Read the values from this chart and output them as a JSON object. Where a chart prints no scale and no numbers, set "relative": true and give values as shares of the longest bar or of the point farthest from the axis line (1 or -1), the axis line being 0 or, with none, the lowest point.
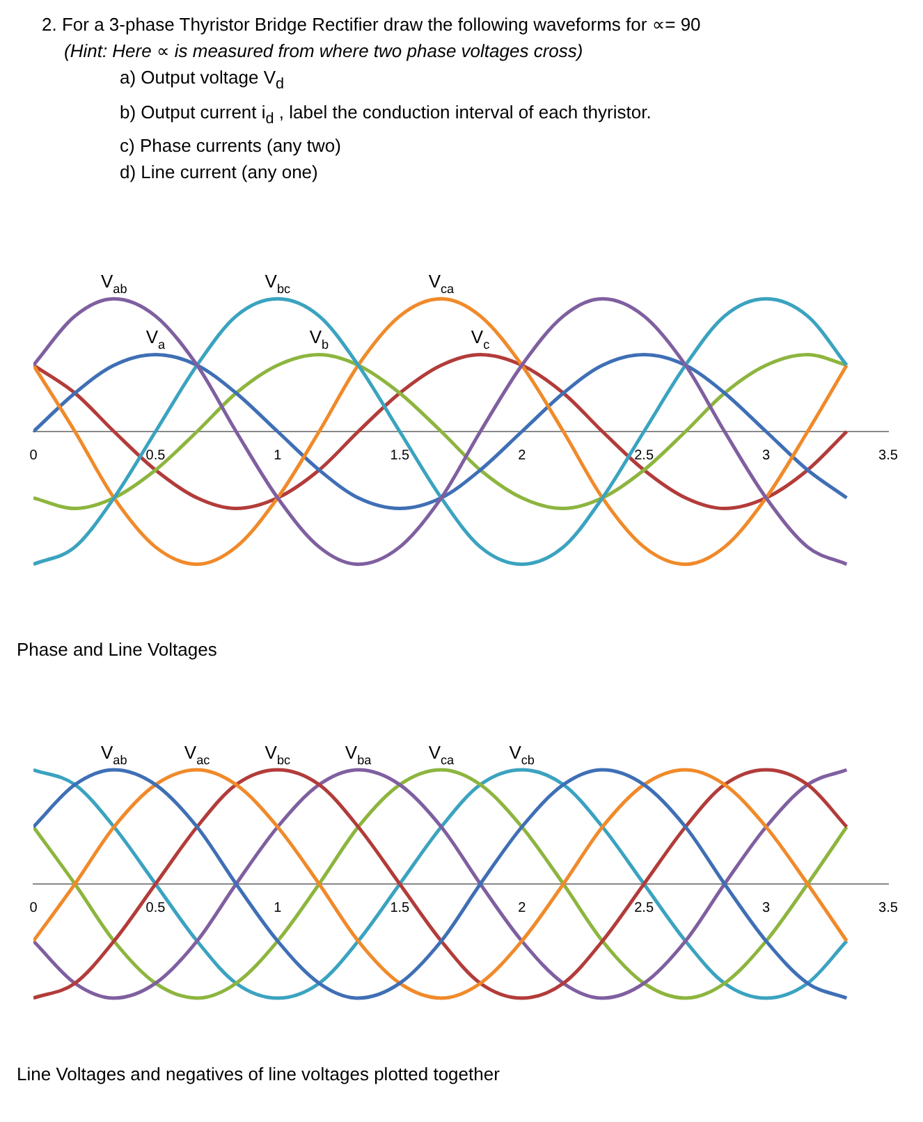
{
  "chart_data": [
    {
      "type": "line",
      "title": "Phase and Line Voltages",
      "annotations": [
        "2. For a 3-phase Thyristor Bridge Rectifier draw the following waveforms for ∝= 90",
        "(Hint: Here ∝ is measured from where two phase voltages cross)",
        "a) Output voltage V$_{d}$",
        "b) Output current i$_{d}$ , label the conduction interval of each thyristor.",
        "c) Phase currents (any two)",
        "d) Line current (any one)"
      ],
      "relative": true,
      "tick_labels": "x",
      "legend": false,
      "grid": false,
      "marker": "none",
      "line_style": "solid",
      "xlim": [
        0,
        3.5
      ],
      "xticks": [
        0,
        0.5,
        1,
        1.5,
        2,
        2.5,
        3,
        3.5
      ],
      "x": [
        0,
        0.17,
        0.33,
        0.5,
        0.67,
        0.83,
        1,
        1.17,
        1.33,
        1.5,
        1.67,
        1.83,
        2,
        2.17,
        2.33,
        2.5,
        2.67,
        2.83,
        3,
        3.17,
        3.33
      ],
      "series": [
        {
          "name": "V$_{ab}$",
          "color": "#7f5fa0",
          "values": [
            0.5,
            0.87,
            1,
            0.87,
            0.5,
            0,
            -0.5,
            -0.87,
            -1,
            -0.87,
            -0.5,
            0,
            0.5,
            0.87,
            1,
            0.87,
            0.5,
            0,
            -0.5,
            -0.87,
            -1
          ]
        },
        {
          "name": "V$_{bc}$",
          "color": "#3ba3c0",
          "values": [
            -1,
            -0.87,
            -0.5,
            0,
            0.5,
            0.87,
            1,
            0.87,
            0.5,
            0,
            -0.5,
            -0.87,
            -1,
            -0.87,
            -0.5,
            0,
            0.5,
            0.87,
            1,
            0.87,
            0.5
          ]
        },
        {
          "name": "V$_{ca}$",
          "color": "#f08a2a",
          "values": [
            0.5,
            0,
            -0.5,
            -0.87,
            -1,
            -0.87,
            -0.5,
            0,
            0.5,
            0.87,
            1,
            0.87,
            0.5,
            0,
            -0.5,
            -0.87,
            -1,
            -0.87,
            -0.5,
            0,
            0.5
          ]
        },
        {
          "name": "V$_{a}$",
          "color": "#3f6fb5",
          "values": [
            0,
            0.29,
            0.5,
            0.58,
            0.5,
            0.29,
            0,
            -0.29,
            -0.5,
            -0.58,
            -0.5,
            -0.29,
            0,
            0.29,
            0.5,
            0.58,
            0.5,
            0.29,
            0,
            -0.29,
            -0.5
          ]
        },
        {
          "name": "V$_{b}$",
          "color": "#8db53f",
          "values": [
            -0.5,
            -0.58,
            -0.5,
            -0.29,
            0,
            0.29,
            0.5,
            0.58,
            0.5,
            0.29,
            0,
            -0.29,
            -0.5,
            -0.58,
            -0.5,
            -0.29,
            0,
            0.29,
            0.5,
            0.58,
            0.5
          ]
        },
        {
          "name": "V$_{c}$",
          "color": "#b23c3a",
          "values": [
            0.5,
            0.29,
            0,
            -0.29,
            -0.5,
            -0.58,
            -0.5,
            -0.29,
            0,
            0.29,
            0.5,
            0.58,
            0.5,
            0.29,
            0,
            -0.29,
            -0.5,
            -0.58,
            -0.5,
            -0.29,
            0
          ]
        }
      ]
    },
    {
      "type": "line",
      "title": "Line Voltages and negatives of line voltages plotted together",
      "relative": true,
      "tick_labels": "x",
      "legend": false,
      "grid": false,
      "marker": "none",
      "line_style": "solid",
      "xlim": [
        0,
        3.5
      ],
      "xticks": [
        0,
        0.5,
        1,
        1.5,
        2,
        2.5,
        3,
        3.5
      ],
      "x": [
        0,
        0.17,
        0.33,
        0.5,
        0.67,
        0.83,
        1,
        1.17,
        1.33,
        1.5,
        1.67,
        1.83,
        2,
        2.17,
        2.33,
        2.5,
        2.67,
        2.83,
        3,
        3.17,
        3.33
      ],
      "series": [
        {
          "name": "V$_{ab}$",
          "color": "#3f6fb5",
          "values": [
            0.5,
            0.87,
            1,
            0.87,
            0.5,
            0,
            -0.5,
            -0.87,
            -1,
            -0.87,
            -0.5,
            0,
            0.5,
            0.87,
            1,
            0.87,
            0.5,
            0,
            -0.5,
            -0.87,
            -1
          ]
        },
        {
          "name": "V$_{ac}$",
          "color": "#f08a2a",
          "values": [
            -0.5,
            0,
            0.5,
            0.87,
            1,
            0.87,
            0.5,
            0,
            -0.5,
            -0.87,
            -1,
            -0.87,
            -0.5,
            0,
            0.5,
            0.87,
            1,
            0.87,
            0.5,
            0,
            -0.5
          ]
        },
        {
          "name": "V$_{bc}$",
          "color": "#b23c3a",
          "values": [
            -1,
            -0.87,
            -0.5,
            0,
            0.5,
            0.87,
            1,
            0.87,
            0.5,
            0,
            -0.5,
            -0.87,
            -1,
            -0.87,
            -0.5,
            0,
            0.5,
            0.87,
            1,
            0.87,
            0.5
          ]
        },
        {
          "name": "V$_{ba}$",
          "color": "#7f5fa0",
          "values": [
            -0.5,
            -0.87,
            -1,
            -0.87,
            -0.5,
            0,
            0.5,
            0.87,
            1,
            0.87,
            0.5,
            0,
            -0.5,
            -0.87,
            -1,
            -0.87,
            -0.5,
            0,
            0.5,
            0.87,
            1
          ]
        },
        {
          "name": "V$_{ca}$",
          "color": "#8db53f",
          "values": [
            0.5,
            0,
            -0.5,
            -0.87,
            -1,
            -0.87,
            -0.5,
            0,
            0.5,
            0.87,
            1,
            0.87,
            0.5,
            0,
            -0.5,
            -0.87,
            -1,
            -0.87,
            -0.5,
            0,
            0.5
          ]
        },
        {
          "name": "V$_{cb}$",
          "color": "#3ba3c0",
          "values": [
            1,
            0.87,
            0.5,
            0,
            -0.5,
            -0.87,
            -1,
            -0.87,
            -0.5,
            0,
            0.5,
            0.87,
            1,
            0.87,
            0.5,
            0,
            -0.5,
            -0.87,
            -1,
            -0.87,
            -0.5
          ]
        }
      ]
    }
  ]
}
